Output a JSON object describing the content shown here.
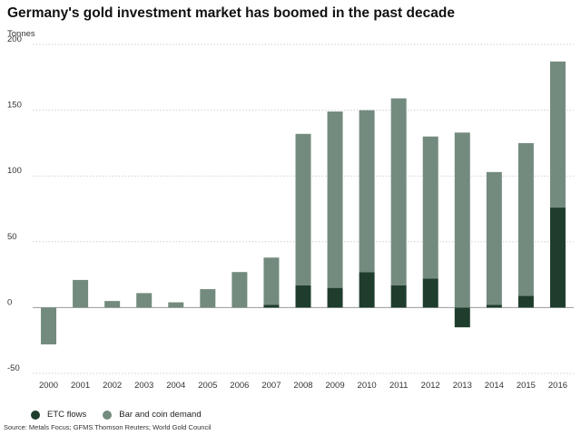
{
  "chart_data": {
    "type": "bar",
    "stacked": true,
    "title": "Germany's gold investment market has boomed in the past decade",
    "ylabel": "Tonnes",
    "xlabel": "",
    "ylim": [
      -50,
      200
    ],
    "yticks": [
      -50,
      0,
      50,
      100,
      150,
      200
    ],
    "grid": true,
    "legend_position": "bottom-left",
    "categories": [
      "2000",
      "2001",
      "2002",
      "2003",
      "2004",
      "2005",
      "2006",
      "2007",
      "2008",
      "2009",
      "2010",
      "2011",
      "2012",
      "2013",
      "2014",
      "2015",
      "2016"
    ],
    "series": [
      {
        "name": "ETC flows",
        "color": "#1f3d2c",
        "values": [
          0,
          0,
          0,
          0,
          0,
          0,
          0,
          2,
          17,
          15,
          27,
          17,
          22,
          -15,
          2,
          9,
          76
        ]
      },
      {
        "name": "Bar and coin demand",
        "color": "#738b7e",
        "values": [
          -28,
          21,
          5,
          11,
          4,
          14,
          27,
          36,
          115,
          134,
          123,
          142,
          108,
          133,
          101,
          116,
          111
        ]
      }
    ],
    "source": "Source: Metals Focus; GFMS Thomson Reuters; World Gold Council"
  }
}
